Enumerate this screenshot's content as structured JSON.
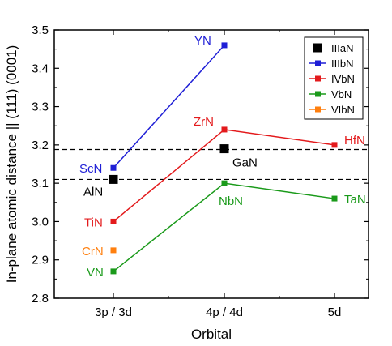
{
  "chart_data": {
    "type": "line",
    "xlabel": "Orbital",
    "ylabel": "In-plane atomic distance || (111) (0001)",
    "categories": [
      "3p / 3d",
      "4p / 4d",
      "5d"
    ],
    "ylim": [
      2.8,
      3.5
    ],
    "yticks": [
      "2.8",
      "2.9",
      "3.0",
      "3.1",
      "3.2",
      "3.3",
      "3.4",
      "3.5"
    ],
    "legend_position": "top-right",
    "reference_lines": [
      3.11,
      3.188
    ],
    "series": [
      {
        "name": "IIIaN",
        "color": "#000000",
        "connected": false,
        "marker_size": "large",
        "points": [
          {
            "x": "3p / 3d",
            "y": 3.11,
            "label": "AlN"
          },
          {
            "x": "4p / 4d",
            "y": 3.19,
            "label": "GaN"
          }
        ]
      },
      {
        "name": "IIIbN",
        "color": "#1f1fd6",
        "connected": true,
        "points": [
          {
            "x": "3p / 3d",
            "y": 3.14,
            "label": "ScN"
          },
          {
            "x": "4p / 4d",
            "y": 3.46,
            "label": "YN"
          }
        ]
      },
      {
        "name": "IVbN",
        "color": "#e31a1c",
        "connected": true,
        "points": [
          {
            "x": "3p / 3d",
            "y": 3.0,
            "label": "TiN"
          },
          {
            "x": "4p / 4d",
            "y": 3.24,
            "label": "ZrN"
          },
          {
            "x": "5d",
            "y": 3.2,
            "label": "HfN"
          }
        ]
      },
      {
        "name": "VbN",
        "color": "#1a9a1a",
        "connected": true,
        "points": [
          {
            "x": "3p / 3d",
            "y": 2.87,
            "label": "VN"
          },
          {
            "x": "4p / 4d",
            "y": 3.1,
            "label": "NbN"
          },
          {
            "x": "5d",
            "y": 3.06,
            "label": "TaN"
          }
        ]
      },
      {
        "name": "VIbN",
        "color": "#ff7f0e",
        "connected": true,
        "points": [
          {
            "x": "3p / 3d",
            "y": 2.925,
            "label": "CrN"
          }
        ]
      }
    ]
  }
}
